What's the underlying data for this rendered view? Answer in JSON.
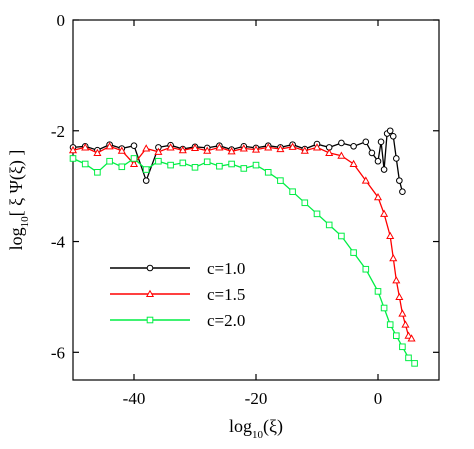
{
  "chart_data": {
    "type": "scatter",
    "title": "",
    "xlabel_main": "log",
    "xlabel_sub": "10",
    "xlabel_tail": "(ξ)",
    "ylabel_main": "log",
    "ylabel_sub": "10",
    "ylabel_tail": "[ ξ  Ψ(ξ) ]",
    "xlim": [
      -50,
      10
    ],
    "ylim": [
      -6.5,
      0
    ],
    "x_ticks": [
      -40,
      -20,
      0
    ],
    "y_ticks": [
      0,
      -2,
      -4,
      -6
    ],
    "x_tick_labels": [
      "-40",
      "-20",
      "0"
    ],
    "y_tick_labels": [
      "0",
      "-2",
      "-4",
      "-6"
    ],
    "grid": false,
    "legend_position": "bottom-left",
    "series": [
      {
        "name": "c=1.0",
        "color": "#000000",
        "marker": "circle",
        "points": [
          [
            -50,
            -2.3
          ],
          [
            -48,
            -2.28
          ],
          [
            -46,
            -2.35
          ],
          [
            -44,
            -2.25
          ],
          [
            -42,
            -2.32
          ],
          [
            -40,
            -2.27
          ],
          [
            -38,
            -2.9
          ],
          [
            -36,
            -2.3
          ],
          [
            -34,
            -2.26
          ],
          [
            -32,
            -2.33
          ],
          [
            -30,
            -2.29
          ],
          [
            -28,
            -2.31
          ],
          [
            -26,
            -2.27
          ],
          [
            -24,
            -2.34
          ],
          [
            -22,
            -2.28
          ],
          [
            -20,
            -2.31
          ],
          [
            -18,
            -2.27
          ],
          [
            -16,
            -2.3
          ],
          [
            -14,
            -2.25
          ],
          [
            -12,
            -2.33
          ],
          [
            -10,
            -2.24
          ],
          [
            -8,
            -2.3
          ],
          [
            -6,
            -2.22
          ],
          [
            -4,
            -2.28
          ],
          [
            -2,
            -2.2
          ],
          [
            -1,
            -2.4
          ],
          [
            0,
            -2.55
          ],
          [
            0.5,
            -2.2
          ],
          [
            1,
            -2.7
          ],
          [
            1.5,
            -2.05
          ],
          [
            2,
            -2.0
          ],
          [
            2.5,
            -2.1
          ],
          [
            3,
            -2.5
          ],
          [
            3.5,
            -2.9
          ],
          [
            4,
            -3.1
          ]
        ]
      },
      {
        "name": "c=1.5",
        "color": "#ff0000",
        "marker": "triangle",
        "points": [
          [
            -50,
            -2.35
          ],
          [
            -48,
            -2.3
          ],
          [
            -46,
            -2.4
          ],
          [
            -44,
            -2.28
          ],
          [
            -42,
            -2.36
          ],
          [
            -40,
            -2.6
          ],
          [
            -38,
            -2.32
          ],
          [
            -36,
            -2.38
          ],
          [
            -34,
            -2.3
          ],
          [
            -32,
            -2.35
          ],
          [
            -30,
            -2.31
          ],
          [
            -28,
            -2.36
          ],
          [
            -26,
            -2.3
          ],
          [
            -24,
            -2.37
          ],
          [
            -22,
            -2.32
          ],
          [
            -20,
            -2.34
          ],
          [
            -18,
            -2.3
          ],
          [
            -16,
            -2.33
          ],
          [
            -14,
            -2.29
          ],
          [
            -12,
            -2.36
          ],
          [
            -10,
            -2.3
          ],
          [
            -8,
            -2.4
          ],
          [
            -6,
            -2.45
          ],
          [
            -4,
            -2.6
          ],
          [
            -2,
            -2.9
          ],
          [
            0,
            -3.2
          ],
          [
            1,
            -3.5
          ],
          [
            2,
            -3.9
          ],
          [
            2.5,
            -4.3
          ],
          [
            3,
            -4.7
          ],
          [
            3.5,
            -5.0
          ],
          [
            4,
            -5.3
          ],
          [
            4.5,
            -5.5
          ],
          [
            5,
            -5.7
          ],
          [
            5.5,
            -5.75
          ]
        ]
      },
      {
        "name": "c=2.0",
        "color": "#00ee44",
        "marker": "square",
        "points": [
          [
            -50,
            -2.5
          ],
          [
            -48,
            -2.6
          ],
          [
            -46,
            -2.75
          ],
          [
            -44,
            -2.55
          ],
          [
            -42,
            -2.65
          ],
          [
            -40,
            -2.5
          ],
          [
            -38,
            -2.7
          ],
          [
            -36,
            -2.55
          ],
          [
            -34,
            -2.62
          ],
          [
            -32,
            -2.58
          ],
          [
            -30,
            -2.66
          ],
          [
            -28,
            -2.56
          ],
          [
            -26,
            -2.64
          ],
          [
            -24,
            -2.6
          ],
          [
            -22,
            -2.68
          ],
          [
            -20,
            -2.62
          ],
          [
            -18,
            -2.75
          ],
          [
            -16,
            -2.9
          ],
          [
            -14,
            -3.1
          ],
          [
            -12,
            -3.3
          ],
          [
            -10,
            -3.5
          ],
          [
            -8,
            -3.7
          ],
          [
            -6,
            -3.9
          ],
          [
            -4,
            -4.2
          ],
          [
            -2,
            -4.5
          ],
          [
            0,
            -4.9
          ],
          [
            1,
            -5.2
          ],
          [
            2,
            -5.5
          ],
          [
            3,
            -5.7
          ],
          [
            4,
            -5.9
          ],
          [
            5,
            -6.1
          ],
          [
            6,
            -6.2
          ]
        ]
      }
    ]
  }
}
